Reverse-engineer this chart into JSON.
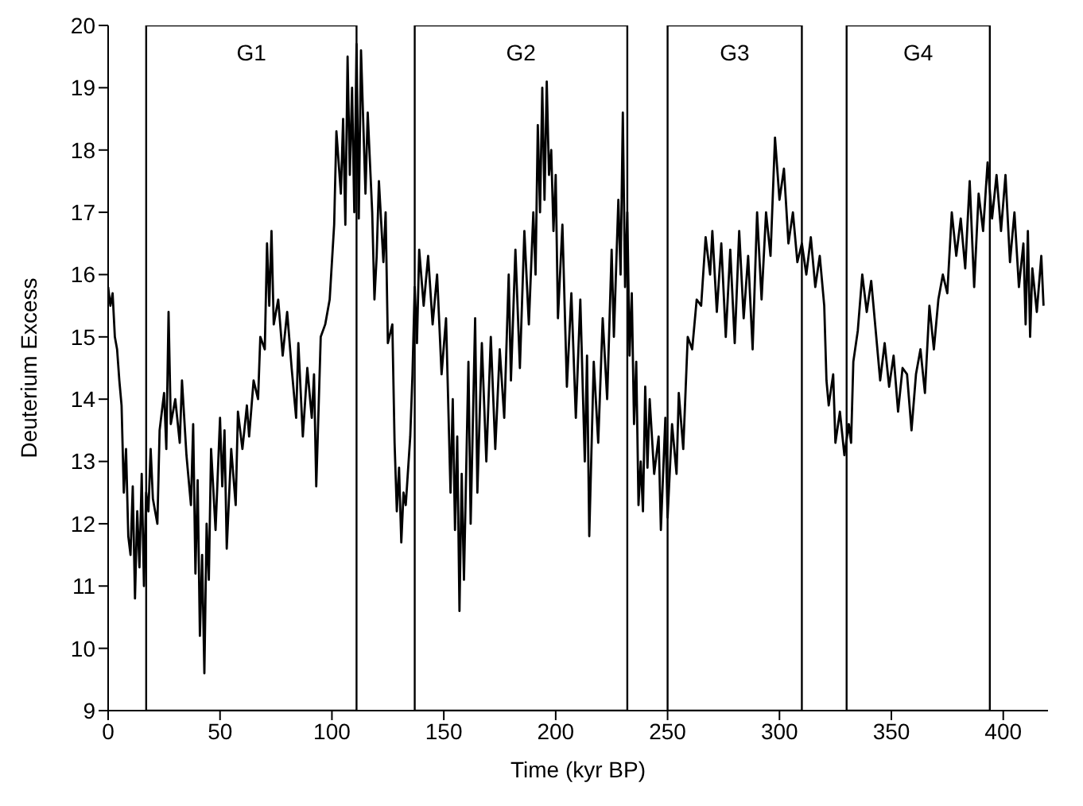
{
  "chart_data": {
    "type": "line",
    "xlabel": "Time (kyr BP)",
    "ylabel": "Deuterium Excess",
    "xlim": [
      0,
      420
    ],
    "xticks": [
      0,
      50,
      100,
      150,
      200,
      250,
      300,
      350,
      400
    ],
    "ylim": [
      9,
      20
    ],
    "yticks": [
      9,
      10,
      11,
      12,
      13,
      14,
      15,
      16,
      17,
      18,
      19,
      20
    ],
    "grid": false,
    "marker": "none",
    "line_style": "solid",
    "bands": [
      {
        "axis": "x",
        "from": 17,
        "to": 111,
        "label": "G1",
        "color": "#ffffff"
      },
      {
        "axis": "x",
        "from": 137,
        "to": 232,
        "label": "G2",
        "color": "#ffffff"
      },
      {
        "axis": "x",
        "from": 250,
        "to": 310,
        "label": "G3",
        "color": "#ffffff"
      },
      {
        "axis": "x",
        "from": 330,
        "to": 394,
        "label": "G4",
        "color": "#ffffff"
      }
    ],
    "series": [
      {
        "color": "#000000",
        "x": [
          0,
          1,
          2,
          3,
          4,
          5,
          6,
          7,
          8,
          9,
          10,
          11,
          12,
          13,
          14,
          15,
          16,
          17,
          18,
          19,
          20,
          22,
          23,
          25,
          26,
          27,
          28,
          30,
          32,
          33,
          35,
          37,
          38,
          39,
          40,
          41,
          42,
          43,
          44,
          45,
          46,
          48,
          50,
          51,
          52,
          53,
          55,
          57,
          58,
          60,
          62,
          63,
          65,
          67,
          68,
          70,
          71,
          72,
          73,
          74,
          76,
          78,
          80,
          82,
          84,
          85,
          87,
          89,
          91,
          92,
          93,
          95,
          97,
          99,
          101,
          102,
          104,
          105,
          106,
          107,
          108,
          109,
          110,
          111,
          112,
          113,
          115,
          116,
          118,
          119,
          120,
          121,
          123,
          124,
          125,
          127,
          128,
          129,
          130,
          131,
          132,
          133,
          135,
          136,
          137,
          138,
          139,
          141,
          143,
          145,
          147,
          149,
          151,
          153,
          154,
          155,
          156,
          157,
          158,
          159,
          161,
          162,
          164,
          165,
          167,
          169,
          171,
          173,
          175,
          177,
          179,
          180,
          182,
          184,
          186,
          188,
          190,
          191,
          192,
          193,
          194,
          195,
          196,
          197,
          198,
          199,
          200,
          201,
          203,
          205,
          207,
          209,
          211,
          213,
          214,
          215,
          217,
          219,
          221,
          223,
          225,
          226,
          228,
          229,
          230,
          231,
          232,
          233,
          234,
          235,
          236,
          237,
          238,
          239,
          240,
          241,
          242,
          244,
          246,
          247,
          249,
          250,
          252,
          254,
          255,
          257,
          259,
          261,
          263,
          265,
          267,
          269,
          270,
          272,
          274,
          276,
          278,
          280,
          282,
          284,
          286,
          288,
          290,
          292,
          294,
          296,
          298,
          300,
          302,
          304,
          306,
          308,
          310,
          312,
          314,
          316,
          318,
          320,
          321,
          322,
          324,
          325,
          327,
          329,
          331,
          332,
          333,
          335,
          337,
          339,
          341,
          343,
          345,
          347,
          349,
          351,
          353,
          355,
          357,
          359,
          361,
          363,
          365,
          367,
          369,
          371,
          373,
          375,
          377,
          379,
          381,
          383,
          385,
          387,
          389,
          391,
          393,
          395,
          397,
          399,
          401,
          403,
          405,
          407,
          409,
          410,
          411,
          412,
          413,
          415,
          417,
          418
        ],
        "values": [
          15.8,
          15.5,
          15.7,
          15.0,
          14.8,
          14.3,
          13.9,
          12.5,
          13.2,
          11.8,
          11.5,
          12.6,
          10.8,
          12.2,
          11.3,
          12.8,
          11.0,
          12.5,
          12.2,
          13.2,
          12.4,
          12.0,
          13.5,
          14.1,
          13.2,
          15.4,
          13.6,
          14.0,
          13.3,
          14.3,
          13.1,
          12.3,
          13.6,
          11.2,
          12.7,
          10.2,
          11.5,
          9.6,
          12.0,
          11.1,
          13.2,
          11.9,
          13.7,
          12.6,
          13.5,
          11.6,
          13.2,
          12.3,
          13.8,
          13.2,
          13.9,
          13.4,
          14.3,
          14.0,
          15.0,
          14.8,
          16.5,
          15.5,
          16.7,
          15.2,
          15.6,
          14.7,
          15.4,
          14.5,
          13.7,
          14.9,
          13.4,
          14.5,
          13.7,
          14.4,
          12.6,
          15.0,
          15.2,
          15.6,
          16.8,
          18.3,
          17.3,
          18.5,
          16.8,
          19.5,
          17.6,
          19.0,
          17.0,
          19.7,
          16.9,
          19.6,
          17.3,
          18.6,
          17.0,
          15.6,
          16.3,
          17.5,
          16.2,
          17.0,
          14.9,
          15.2,
          13.3,
          12.2,
          12.9,
          11.7,
          12.5,
          12.3,
          13.4,
          14.4,
          15.8,
          14.9,
          16.4,
          15.5,
          16.3,
          15.2,
          16.0,
          14.4,
          15.3,
          12.5,
          14.0,
          11.9,
          13.4,
          10.6,
          12.8,
          11.1,
          14.6,
          12.0,
          15.3,
          12.5,
          14.9,
          13.0,
          15.0,
          13.2,
          14.8,
          13.7,
          16.0,
          14.3,
          16.4,
          14.5,
          16.7,
          15.2,
          17.0,
          16.0,
          18.4,
          17.0,
          19.0,
          17.2,
          19.1,
          17.6,
          18.0,
          16.7,
          17.6,
          15.3,
          16.8,
          14.2,
          15.7,
          13.7,
          15.6,
          13.0,
          14.7,
          11.8,
          14.6,
          13.3,
          15.3,
          14.0,
          16.4,
          15.0,
          17.2,
          16.0,
          18.6,
          15.8,
          17.0,
          14.7,
          15.7,
          13.6,
          14.6,
          12.3,
          13.0,
          12.2,
          14.2,
          12.9,
          14.0,
          12.8,
          13.4,
          11.9,
          13.7,
          12.1,
          13.6,
          12.8,
          14.1,
          13.2,
          15.0,
          14.8,
          15.6,
          15.5,
          16.6,
          16.0,
          16.7,
          15.4,
          16.5,
          15.0,
          16.4,
          14.9,
          16.7,
          15.3,
          16.3,
          14.8,
          17.0,
          15.6,
          17.0,
          16.3,
          18.2,
          17.2,
          17.7,
          16.5,
          17.0,
          16.2,
          16.5,
          16.0,
          16.6,
          15.8,
          16.3,
          15.5,
          14.3,
          13.9,
          14.4,
          13.3,
          13.8,
          13.1,
          13.6,
          13.3,
          14.6,
          15.1,
          16.0,
          15.4,
          15.9,
          15.1,
          14.3,
          14.9,
          14.2,
          14.7,
          13.8,
          14.5,
          14.4,
          13.5,
          14.4,
          14.8,
          14.1,
          15.5,
          14.8,
          15.6,
          16.0,
          15.7,
          17.0,
          16.3,
          16.9,
          16.1,
          17.5,
          15.8,
          17.3,
          16.7,
          17.8,
          16.9,
          17.6,
          16.7,
          17.6,
          16.2,
          17.0,
          15.8,
          16.5,
          15.2,
          16.7,
          15.0,
          16.1,
          15.4,
          16.3,
          15.5
        ]
      }
    ]
  }
}
